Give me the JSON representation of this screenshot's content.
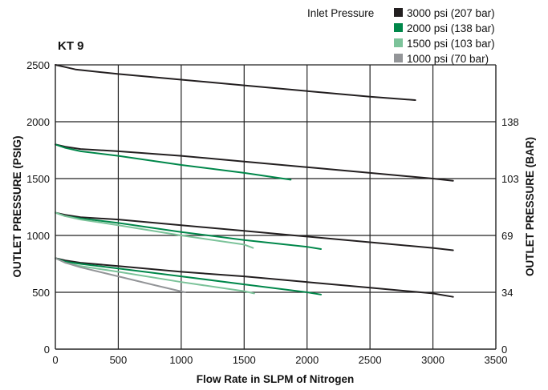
{
  "chart_data": {
    "type": "line",
    "title": "KT 9",
    "xlabel": "Flow Rate in SLPM of Nitrogen",
    "ylabel": "OUTLET PRESSURE (PSIG)",
    "y2label": "OUTLET PRESSURE (BAR)",
    "xlim": [
      0,
      3500
    ],
    "ylim": [
      0,
      2500
    ],
    "x_ticks": [
      0,
      500,
      1000,
      1500,
      2000,
      2500,
      3000,
      3500
    ],
    "y_ticks": [
      0,
      500,
      1000,
      1500,
      2000,
      2500
    ],
    "y2_ticks": [
      {
        "label": "0",
        "at_psig": 0
      },
      {
        "label": "34",
        "at_psig": 500
      },
      {
        "label": "69",
        "at_psig": 1000
      },
      {
        "label": "103",
        "at_psig": 1500
      },
      {
        "label": "138",
        "at_psig": 2000
      }
    ],
    "grid": true,
    "legend_title": "Inlet Pressure",
    "legend_position": "top-right",
    "series": [
      {
        "name": "3000 psi (207 bar)",
        "color": "#231f20",
        "curves": [
          [
            [
              0,
              2500
            ],
            [
              80,
              2480
            ],
            [
              160,
              2460
            ],
            [
              500,
              2420
            ],
            [
              1000,
              2370
            ],
            [
              1500,
              2320
            ],
            [
              2000,
              2270
            ],
            [
              2500,
              2220
            ],
            [
              2860,
              2190
            ]
          ],
          [
            [
              0,
              1800
            ],
            [
              80,
              1780
            ],
            [
              200,
              1760
            ],
            [
              500,
              1740
            ],
            [
              1000,
              1700
            ],
            [
              1500,
              1650
            ],
            [
              2000,
              1600
            ],
            [
              2500,
              1550
            ],
            [
              3000,
              1500
            ],
            [
              3160,
              1480
            ]
          ],
          [
            [
              0,
              1200
            ],
            [
              80,
              1180
            ],
            [
              200,
              1160
            ],
            [
              500,
              1140
            ],
            [
              1000,
              1090
            ],
            [
              1500,
              1040
            ],
            [
              2000,
              990
            ],
            [
              2500,
              940
            ],
            [
              3000,
              890
            ],
            [
              3160,
              870
            ]
          ],
          [
            [
              0,
              800
            ],
            [
              80,
              780
            ],
            [
              200,
              760
            ],
            [
              500,
              730
            ],
            [
              1000,
              680
            ],
            [
              1500,
              640
            ],
            [
              2000,
              590
            ],
            [
              2500,
              540
            ],
            [
              3000,
              490
            ],
            [
              3160,
              460
            ]
          ]
        ]
      },
      {
        "name": "2000 psi (138 bar)",
        "color": "#00874a",
        "curves": [
          [
            [
              0,
              1800
            ],
            [
              80,
              1770
            ],
            [
              200,
              1740
            ],
            [
              500,
              1700
            ],
            [
              1000,
              1620
            ],
            [
              1500,
              1550
            ],
            [
              1870,
              1490
            ]
          ],
          [
            [
              0,
              1200
            ],
            [
              80,
              1170
            ],
            [
              200,
              1150
            ],
            [
              500,
              1110
            ],
            [
              1000,
              1030
            ],
            [
              1500,
              960
            ],
            [
              2000,
              900
            ],
            [
              2110,
              880
            ]
          ],
          [
            [
              0,
              800
            ],
            [
              80,
              770
            ],
            [
              200,
              750
            ],
            [
              500,
              710
            ],
            [
              1000,
              640
            ],
            [
              1500,
              570
            ],
            [
              2000,
              500
            ],
            [
              2110,
              480
            ]
          ]
        ]
      },
      {
        "name": "1500 psi (103 bar)",
        "color": "#7cc39a",
        "curves": [
          [
            [
              0,
              1200
            ],
            [
              80,
              1170
            ],
            [
              200,
              1140
            ],
            [
              500,
              1090
            ],
            [
              1000,
              1000
            ],
            [
              1500,
              920
            ],
            [
              1570,
              890
            ]
          ],
          [
            [
              0,
              800
            ],
            [
              80,
              760
            ],
            [
              200,
              730
            ],
            [
              500,
              680
            ],
            [
              1000,
              590
            ],
            [
              1500,
              510
            ],
            [
              1580,
              490
            ]
          ]
        ]
      },
      {
        "name": "1000 psi (70 bar)",
        "color": "#939598",
        "curves": [
          [
            [
              0,
              800
            ],
            [
              80,
              760
            ],
            [
              200,
              720
            ],
            [
              500,
              640
            ],
            [
              800,
              560
            ],
            [
              1030,
              500
            ]
          ]
        ]
      }
    ]
  }
}
